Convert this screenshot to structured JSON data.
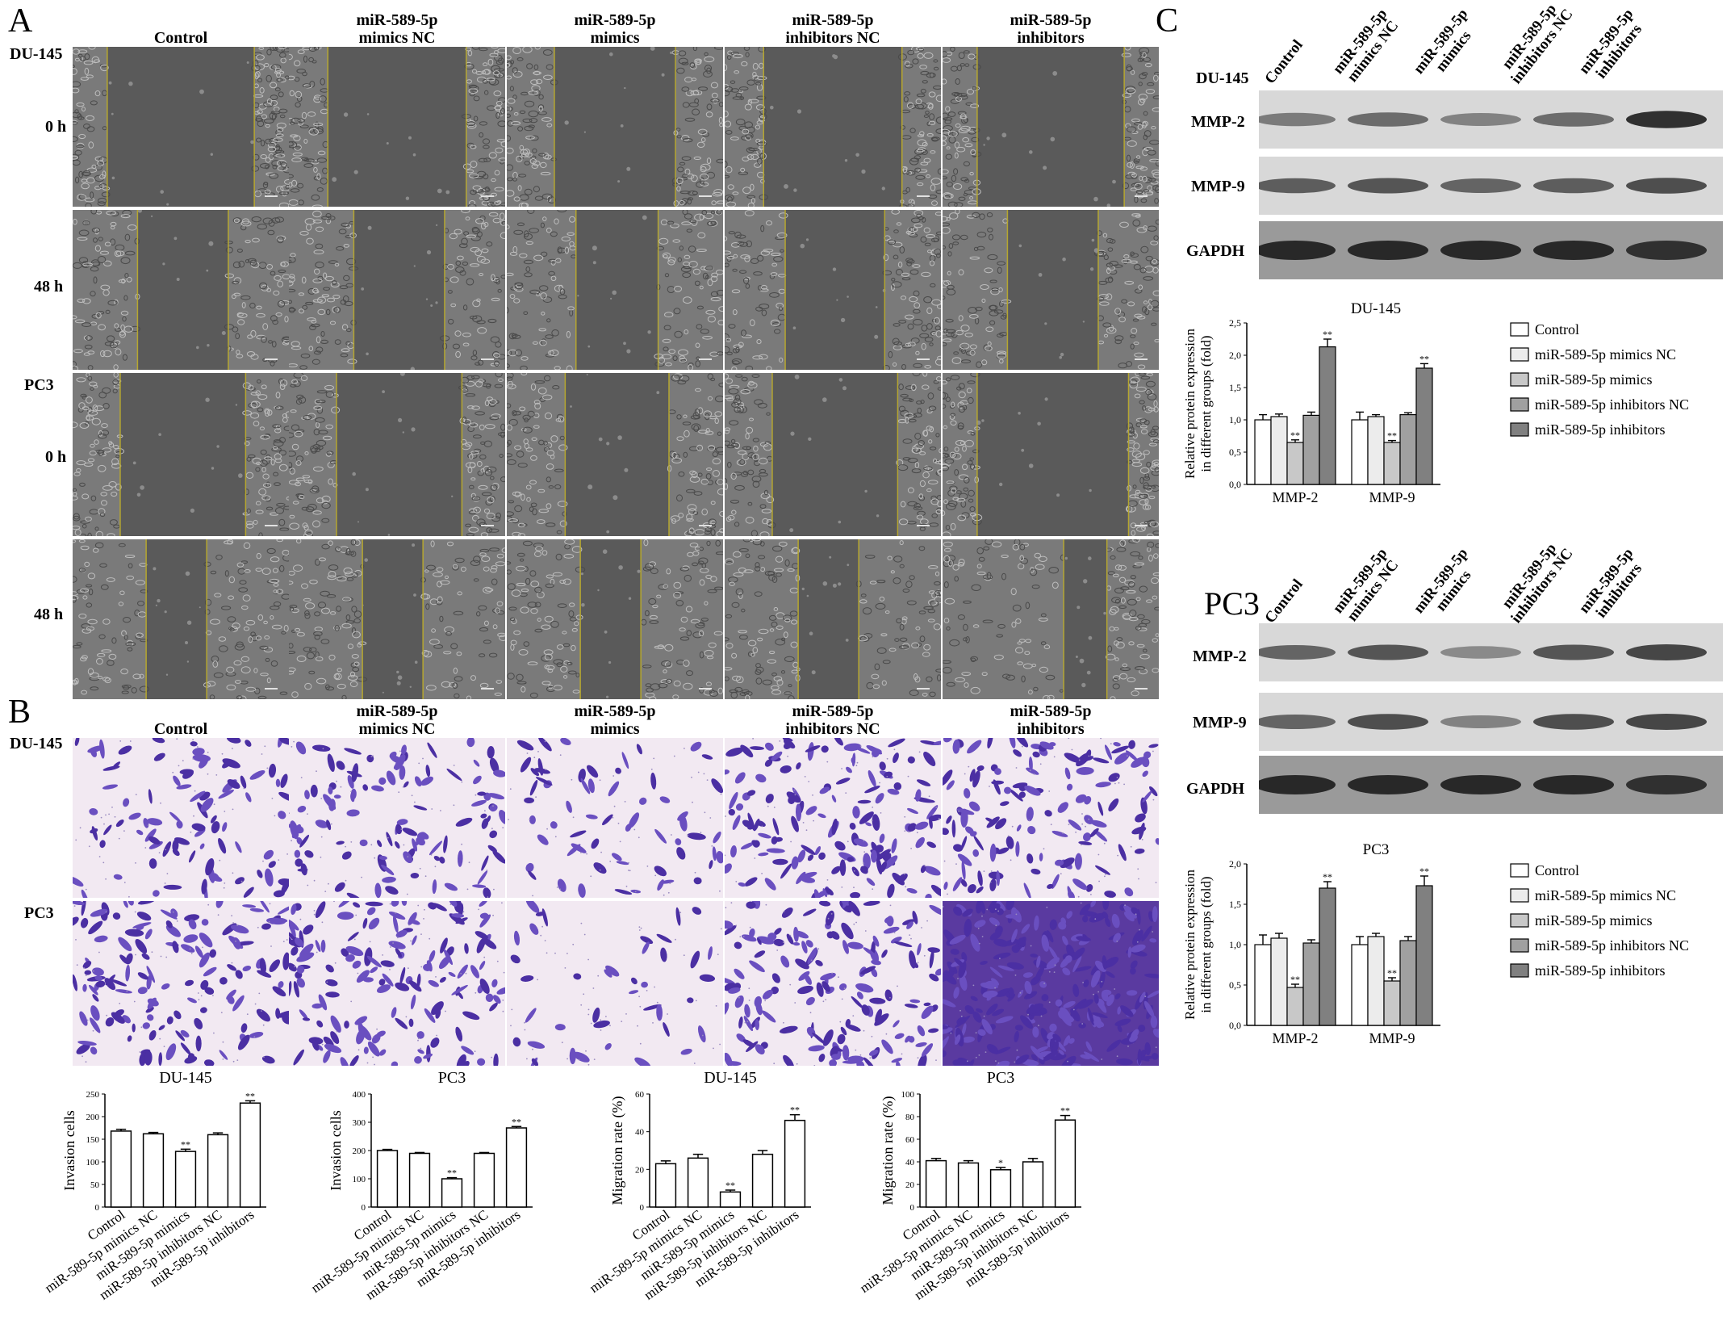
{
  "panels": {
    "a": "A",
    "b": "B",
    "c": "C"
  },
  "panelA": {
    "col_headers": [
      "Control",
      "miR-589-5p\nmimics NC",
      "miR-589-5p\nmimics",
      "miR-589-5p\ninhibitors NC",
      "miR-589-5p\ninhibitors"
    ],
    "row_labels": {
      "du145": "DU-145",
      "pc3": "PC3",
      "t0": "0 h",
      "t48": "48 h"
    }
  },
  "panelB": {
    "col_headers": [
      "Control",
      "miR-589-5p\nmimics NC",
      "miR-589-5p\nmimics",
      "miR-589-5p\ninhibitors NC",
      "miR-589-5p\ninhibitors"
    ],
    "row_labels": {
      "du145": "DU-145",
      "pc3": "PC3"
    }
  },
  "panelC": {
    "du_cell": "DU-145",
    "pc3_title": "PC3",
    "lanes": [
      "Control",
      "miR-589-5p\nmimics NC",
      "miR-589-5p\nmimics",
      "miR-589-5p\ninhibitors NC",
      "miR-589-5p\ninhibitors"
    ],
    "bands": [
      "MMP-2",
      "MMP-9",
      "GAPDH"
    ]
  },
  "chart_data": [
    {
      "type": "bar",
      "title": "DU-145",
      "xlabel": "",
      "ylabel": "Invasion cells",
      "categories": [
        "Control",
        "miR-589-5p mimics NC",
        "miR-589-5p mimics",
        "miR-589-5p inhibitors NC",
        "miR-589-5p inhibitors"
      ],
      "values": [
        168,
        162,
        123,
        160,
        230
      ],
      "errors": [
        4,
        3,
        5,
        4,
        5
      ],
      "significance": [
        "",
        "",
        "**",
        "",
        "**"
      ],
      "ylim": [
        0,
        250
      ],
      "yticks": [
        "0",
        "50",
        "100",
        "150",
        "200",
        "250"
      ]
    },
    {
      "type": "bar",
      "title": "PC3",
      "xlabel": "",
      "ylabel": "Invasion cells",
      "categories": [
        "Control",
        "miR-589-5p mimics NC",
        "miR-589-5p mimics",
        "miR-589-5p inhibitors NC",
        "miR-589-5p inhibitors"
      ],
      "values": [
        200,
        190,
        100,
        190,
        280
      ],
      "errors": [
        4,
        3,
        4,
        3,
        5
      ],
      "significance": [
        "",
        "",
        "**",
        "",
        "**"
      ],
      "ylim": [
        0,
        400
      ],
      "yticks": [
        "0",
        "100",
        "200",
        "300",
        "400"
      ]
    },
    {
      "type": "bar",
      "title": "DU-145",
      "xlabel": "",
      "ylabel": "Migration rate (%)",
      "categories": [
        "Control",
        "miR-589-5p mimics NC",
        "miR-589-5p mimics",
        "miR-589-5p inhibitors NC",
        "miR-589-5p inhibitors"
      ],
      "values": [
        23,
        26,
        8,
        28,
        46
      ],
      "errors": [
        1.5,
        2,
        1,
        2,
        3
      ],
      "significance": [
        "",
        "",
        "**",
        "",
        "**"
      ],
      "ylim": [
        0,
        60
      ],
      "yticks": [
        "0",
        "20",
        "40",
        "60"
      ]
    },
    {
      "type": "bar",
      "title": "PC3",
      "xlabel": "",
      "ylabel": "Migration rate (%)",
      "categories": [
        "Control",
        "miR-589-5p mimics NC",
        "miR-589-5p mimics",
        "miR-589-5p inhibitors NC",
        "miR-589-5p inhibitors"
      ],
      "values": [
        41,
        39,
        33,
        40,
        77
      ],
      "errors": [
        2,
        2,
        2,
        3,
        4
      ],
      "significance": [
        "",
        "",
        "*",
        "",
        "**"
      ],
      "ylim": [
        0,
        100
      ],
      "yticks": [
        "0",
        "20",
        "40",
        "60",
        "80",
        "100"
      ]
    },
    {
      "type": "bar",
      "title": "DU-145",
      "xlabel": "",
      "ylabel": "Relative protein expression\nin different groups (fold)",
      "categories": [
        "MMP-2",
        "MMP-9"
      ],
      "series": [
        {
          "name": "Control",
          "values": [
            1.0,
            1.0
          ],
          "errors": [
            0.08,
            0.12
          ],
          "color": "#ffffff"
        },
        {
          "name": "miR-589-5p mimics NC",
          "values": [
            1.05,
            1.05
          ],
          "errors": [
            0.04,
            0.03
          ],
          "color": "#ececec"
        },
        {
          "name": "miR-589-5p mimics",
          "values": [
            0.65,
            0.65
          ],
          "errors": [
            0.04,
            0.03
          ],
          "color": "#c8c8c8"
        },
        {
          "name": "miR-589-5p inhibitors NC",
          "values": [
            1.07,
            1.08
          ],
          "errors": [
            0.05,
            0.03
          ],
          "color": "#a0a0a0"
        },
        {
          "name": "miR-589-5p inhibitors",
          "values": [
            2.13,
            1.8
          ],
          "errors": [
            0.12,
            0.07
          ],
          "color": "#808080"
        }
      ],
      "significance": [
        [
          "",
          "",
          "**",
          "",
          "**"
        ],
        [
          "",
          "",
          "**",
          "",
          "**"
        ]
      ],
      "ylim": [
        0,
        2.5
      ],
      "yticks": [
        "0,0",
        "0,5",
        "1,0",
        "1,5",
        "2,0",
        "2,5"
      ],
      "legend": "right"
    },
    {
      "type": "bar",
      "title": "PC3",
      "xlabel": "",
      "ylabel": "Relative protein expression\nin different groups (fold)",
      "categories": [
        "MMP-2",
        "MMP-9"
      ],
      "series": [
        {
          "name": "Control",
          "values": [
            1.0,
            1.0
          ],
          "errors": [
            0.12,
            0.1
          ],
          "color": "#ffffff"
        },
        {
          "name": "miR-589-5p mimics NC",
          "values": [
            1.08,
            1.1
          ],
          "errors": [
            0.06,
            0.04
          ],
          "color": "#ececec"
        },
        {
          "name": "miR-589-5p mimics",
          "values": [
            0.47,
            0.55
          ],
          "errors": [
            0.04,
            0.04
          ],
          "color": "#c8c8c8"
        },
        {
          "name": "miR-589-5p inhibitors NC",
          "values": [
            1.02,
            1.05
          ],
          "errors": [
            0.04,
            0.05
          ],
          "color": "#a0a0a0"
        },
        {
          "name": "miR-589-5p inhibitors",
          "values": [
            1.7,
            1.73
          ],
          "errors": [
            0.08,
            0.12
          ],
          "color": "#808080"
        }
      ],
      "significance": [
        [
          "",
          "",
          "**",
          "",
          "**"
        ],
        [
          "",
          "",
          "**",
          "",
          "**"
        ]
      ],
      "ylim": [
        0,
        2.0
      ],
      "yticks": [
        "0,0",
        "0,5",
        "1,0",
        "1,5",
        "2,0"
      ],
      "legend": "right"
    }
  ]
}
